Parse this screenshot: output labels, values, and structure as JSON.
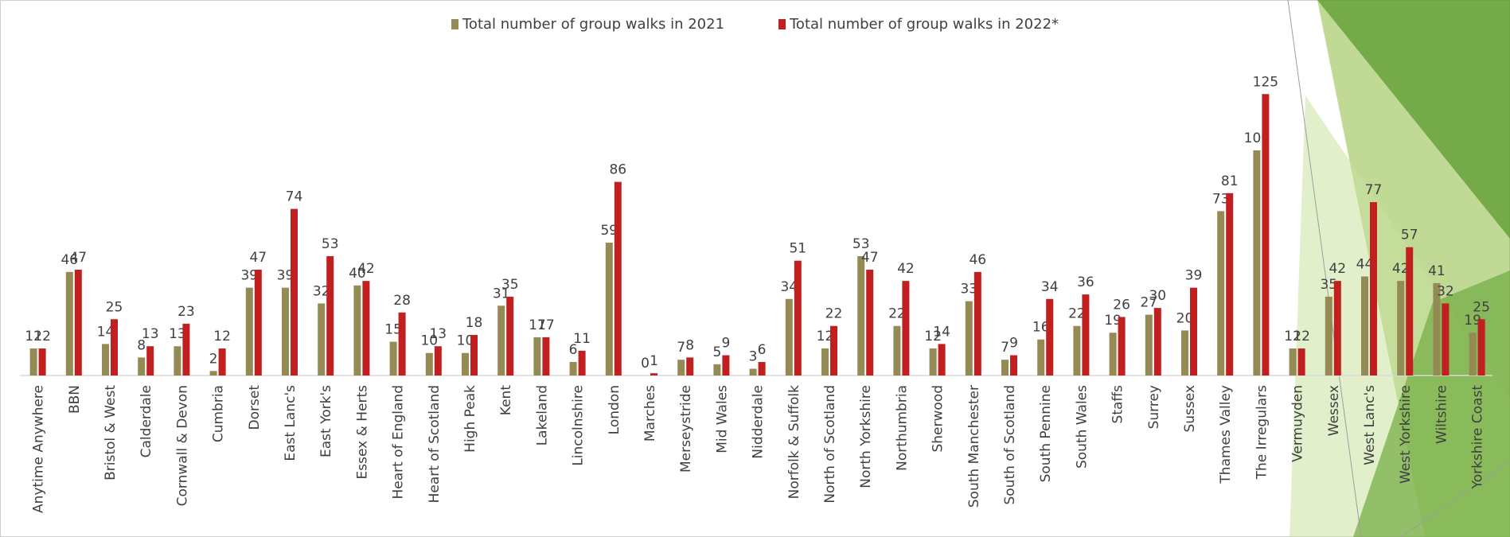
{
  "chart_data": {
    "type": "bar",
    "categories": [
      "Anytime Anywhere",
      "BBN",
      "Bristol & West",
      "Calderdale",
      "Cornwall & Devon",
      "Cumbria",
      "Dorset",
      "East Lanc's",
      "East York's",
      "Essex & Herts",
      "Heart of England",
      "Heart of Scotland",
      "High Peak",
      "Kent",
      "Lakeland",
      "Lincolnshire",
      "London",
      "Marches",
      "Merseystride",
      "Mid Wales",
      "Nidderdale",
      "Norfolk & Suffolk",
      "North of Scotland",
      "North Yorkshire",
      "Northumbria",
      "Sherwood",
      "South Manchester",
      "South of Scotland",
      "South Pennine",
      "South Wales",
      "Staffs",
      "Surrey",
      "Sussex",
      "Thames Valley",
      "The Irregulars",
      "Vermuyden",
      "Wessex",
      "West Lanc's",
      "West Yorkshire",
      "Wiltshire",
      "Yorkshire Coast"
    ],
    "series": [
      {
        "name": "Total number of group walks in 2021",
        "color": "#948a54",
        "values": [
          12,
          46,
          14,
          8,
          13,
          2,
          39,
          39,
          32,
          40,
          15,
          10,
          10,
          31,
          17,
          6,
          59,
          0,
          7,
          5,
          3,
          34,
          12,
          53,
          22,
          12,
          33,
          7,
          16,
          22,
          19,
          27,
          20,
          73,
          100,
          12,
          35,
          44,
          42,
          41,
          19
        ]
      },
      {
        "name": "Total number of group walks in 2022*",
        "color": "#c0201f",
        "values": [
          12,
          47,
          25,
          13,
          23,
          12,
          47,
          74,
          53,
          42,
          28,
          13,
          18,
          35,
          17,
          11,
          86,
          1,
          8,
          9,
          6,
          51,
          22,
          47,
          42,
          14,
          46,
          9,
          34,
          36,
          26,
          30,
          39,
          81,
          125,
          12,
          42,
          77,
          57,
          32,
          25
        ]
      }
    ],
    "legend": "top"
  }
}
